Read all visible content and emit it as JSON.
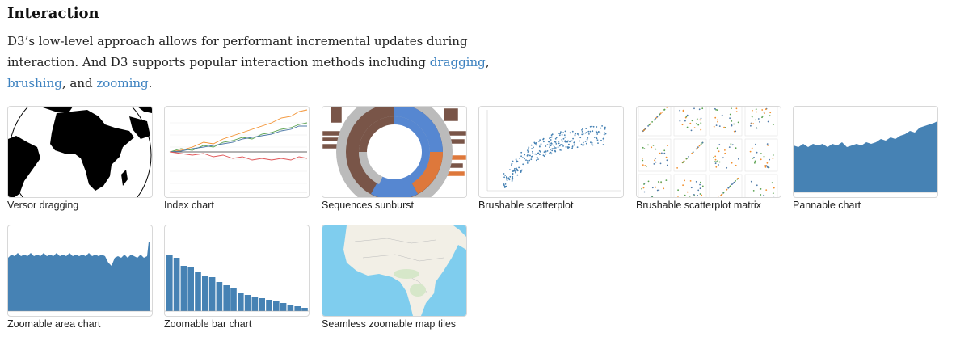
{
  "section": {
    "title": "Interaction",
    "intro": {
      "line1": "D3’s low-level approach allows for performant incremental updates during",
      "line2_prefix": "interaction. And D3 supports popular interaction methods including ",
      "link_dragging": "dragging",
      "comma": ",",
      "link_brushing": "brushing",
      "mid": ", and ",
      "link_zooming": "zooming",
      "end": "."
    }
  },
  "examples": [
    {
      "label": "Versor dragging"
    },
    {
      "label": "Index chart"
    },
    {
      "label": "Sequences sunburst"
    },
    {
      "label": "Brushable scatterplot"
    },
    {
      "label": "Brushable scatterplot matrix"
    },
    {
      "label": "Pannable chart"
    },
    {
      "label": "Zoomable area chart"
    },
    {
      "label": "Zoomable bar chart"
    },
    {
      "label": "Seamless zoomable map tiles"
    }
  ],
  "colors": {
    "link": "#3d82c0",
    "chart_blue": "#4682b4",
    "sunburst_brown": "#795548",
    "sunburst_blue": "#5687d1",
    "sunburst_orange": "#de783b",
    "sunburst_gray": "#bbbbbb",
    "map_water": "#7fcdee",
    "map_land": "#f2efe6"
  }
}
